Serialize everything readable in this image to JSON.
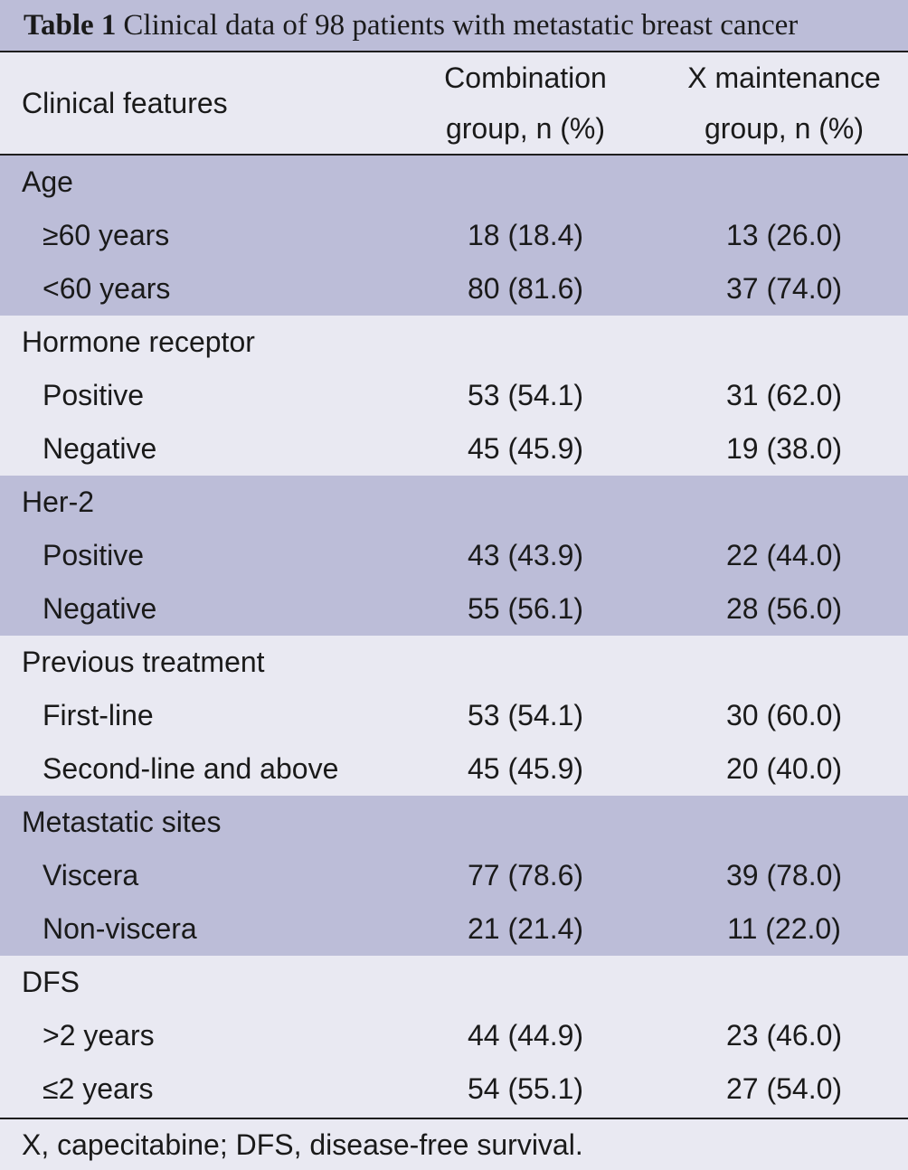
{
  "table": {
    "label": "Table 1",
    "caption": "Clinical data of 98 patients with metastatic breast cancer",
    "columns": {
      "feature": "Clinical features",
      "combination_line1": "Combination",
      "combination_line2": "group, n (%)",
      "maintenance_line1": "X maintenance",
      "maintenance_line2": "group, n (%)"
    },
    "groups": [
      {
        "title": "Age",
        "rows": [
          {
            "label": "≥60 years",
            "combination": "18 (18.4)",
            "maintenance": "13 (26.0)"
          },
          {
            "label": "<60 years",
            "combination": "80 (81.6)",
            "maintenance": "37 (74.0)"
          }
        ]
      },
      {
        "title": "Hormone receptor",
        "rows": [
          {
            "label": "Positive",
            "combination": "53 (54.1)",
            "maintenance": "31 (62.0)"
          },
          {
            "label": "Negative",
            "combination": "45 (45.9)",
            "maintenance": "19 (38.0)"
          }
        ]
      },
      {
        "title": "Her-2",
        "rows": [
          {
            "label": "Positive",
            "combination": "43 (43.9)",
            "maintenance": "22 (44.0)"
          },
          {
            "label": "Negative",
            "combination": "55 (56.1)",
            "maintenance": "28 (56.0)"
          }
        ]
      },
      {
        "title": "Previous treatment",
        "rows": [
          {
            "label": "First-line",
            "combination": "53 (54.1)",
            "maintenance": "30 (60.0)"
          },
          {
            "label": "Second-line and above",
            "combination": "45 (45.9)",
            "maintenance": "20 (40.0)"
          }
        ]
      },
      {
        "title": "Metastatic sites",
        "rows": [
          {
            "label": "Viscera",
            "combination": "77 (78.6)",
            "maintenance": "39 (78.0)"
          },
          {
            "label": "Non-viscera",
            "combination": "21 (21.4)",
            "maintenance": "11 (22.0)"
          }
        ]
      },
      {
        "title": "DFS",
        "rows": [
          {
            "label": ">2 years",
            "combination": "44 (44.9)",
            "maintenance": "23 (46.0)"
          },
          {
            "label": "≤2 years",
            "combination": "54 (55.1)",
            "maintenance": "27 (54.0)"
          }
        ]
      }
    ],
    "footnote": "X, capecitabine; DFS, disease-free survival."
  }
}
